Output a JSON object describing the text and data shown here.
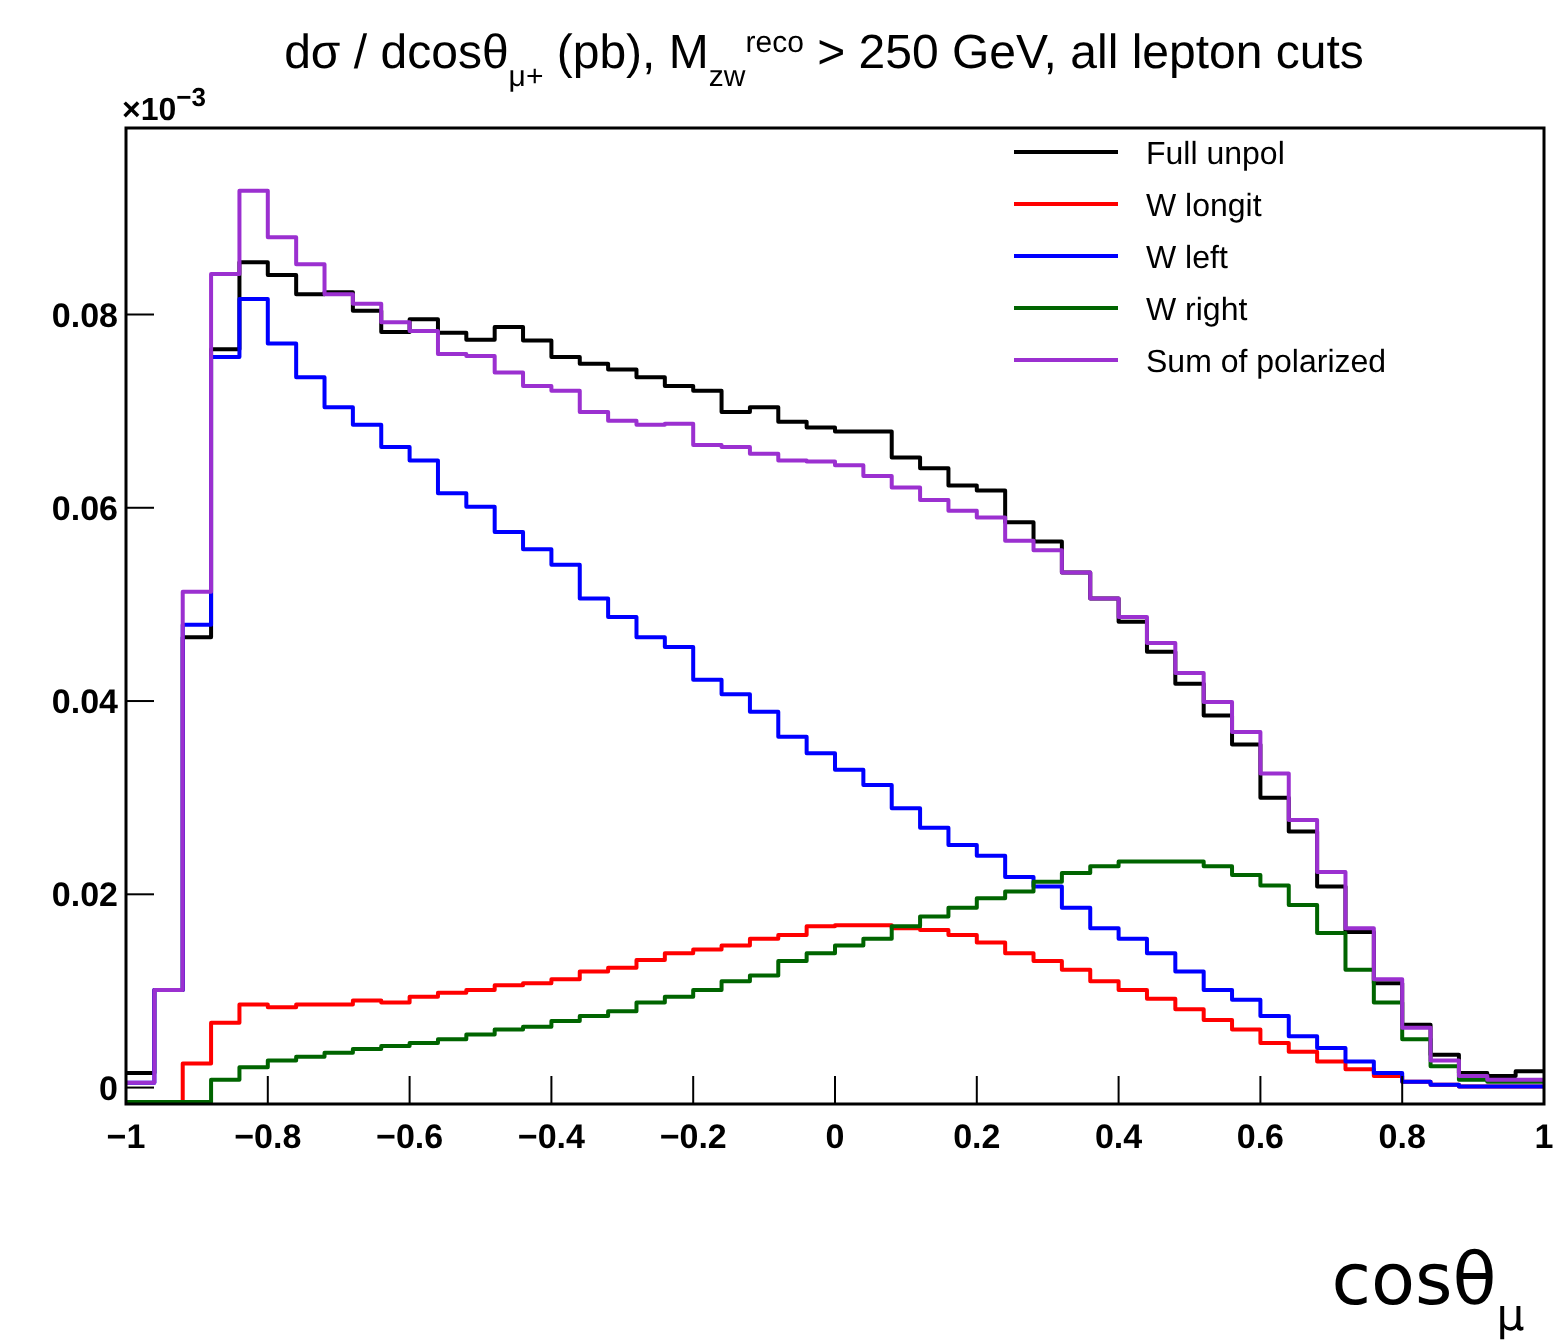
{
  "chart_data": {
    "type": "histogram",
    "title": "dσ / dcosθ$_{μ+}$ (pb), M$_{zw}$$^{reco}$ > 250 GeV, all lepton cuts",
    "xlabel": "cosθ$_{μ}$",
    "annotations": [
      "×10$^{−3}$"
    ],
    "bins": [
      -1,
      -0.96,
      -0.92,
      -0.88,
      -0.84,
      -0.8,
      -0.76,
      -0.72,
      -0.68,
      -0.64,
      -0.6,
      -0.56,
      -0.52,
      -0.48,
      -0.44,
      -0.4,
      -0.36,
      -0.32,
      -0.28,
      -0.24,
      -0.2,
      -0.16,
      -0.12,
      -0.08,
      -0.04,
      0,
      0.04,
      0.08,
      0.12,
      0.16,
      0.2,
      0.24,
      0.28,
      0.32,
      0.36,
      0.4,
      0.44,
      0.48,
      0.52,
      0.56,
      0.6,
      0.64,
      0.68,
      0.72,
      0.76,
      0.8,
      0.84,
      0.88,
      0.92,
      0.96,
      1
    ],
    "series": [
      {
        "name": "Full unpol",
        "color": "#000000",
        "values": [
          0.0015,
          0.0101,
          0.0466,
          0.0764,
          0.0854,
          0.0841,
          0.0821,
          0.0823,
          0.0804,
          0.0782,
          0.0795,
          0.0781,
          0.0774,
          0.0787,
          0.0773,
          0.0756,
          0.0749,
          0.0743,
          0.0735,
          0.0726,
          0.0721,
          0.0699,
          0.0704,
          0.0689,
          0.0683,
          0.0679,
          0.0679,
          0.0652,
          0.0641,
          0.0623,
          0.0618,
          0.0585,
          0.0565,
          0.0533,
          0.0506,
          0.0482,
          0.0451,
          0.0418,
          0.0385,
          0.0355,
          0.03,
          0.0265,
          0.0208,
          0.0161,
          0.0108,
          0.0065,
          0.0034,
          0.0015,
          0.0012,
          0.0017
        ]
      },
      {
        "name": "W longit",
        "color": "#ff0000",
        "values": [
          -0.0015,
          -0.0015,
          0.0025,
          0.0067,
          0.0086,
          0.0083,
          0.0086,
          0.0086,
          0.009,
          0.0088,
          0.0094,
          0.0098,
          0.0101,
          0.0106,
          0.0108,
          0.0112,
          0.012,
          0.0124,
          0.0132,
          0.0139,
          0.0143,
          0.0147,
          0.0154,
          0.0158,
          0.0167,
          0.0168,
          0.0168,
          0.0165,
          0.0163,
          0.0158,
          0.015,
          0.0139,
          0.0131,
          0.0122,
          0.011,
          0.0101,
          0.0092,
          0.0081,
          0.007,
          0.006,
          0.0046,
          0.0037,
          0.0027,
          0.0019,
          0.0012,
          0.0006,
          0.0003,
          0.0001,
          0.0001,
          0.0001
        ]
      },
      {
        "name": "W left",
        "color": "#0000ff",
        "values": [
          0.0005,
          0.0101,
          0.0479,
          0.0756,
          0.0816,
          0.077,
          0.0735,
          0.0704,
          0.0686,
          0.0663,
          0.0649,
          0.0615,
          0.0601,
          0.0575,
          0.0557,
          0.0541,
          0.0506,
          0.0487,
          0.0466,
          0.0456,
          0.0422,
          0.0407,
          0.0389,
          0.0363,
          0.0346,
          0.0329,
          0.0313,
          0.0289,
          0.0269,
          0.0251,
          0.024,
          0.0218,
          0.0208,
          0.0186,
          0.0165,
          0.0154,
          0.0139,
          0.012,
          0.0101,
          0.0091,
          0.0074,
          0.0053,
          0.0041,
          0.0027,
          0.0015,
          0.0006,
          0.0003,
          0.0001,
          0.0001,
          0.0001
        ]
      },
      {
        "name": "W right",
        "color": "#006400",
        "values": [
          -0.0015,
          -0.0015,
          -0.0015,
          0.0008,
          0.0021,
          0.0028,
          0.0032,
          0.0036,
          0.004,
          0.0043,
          0.0046,
          0.005,
          0.0055,
          0.006,
          0.0063,
          0.0069,
          0.0074,
          0.0079,
          0.0088,
          0.0094,
          0.0101,
          0.011,
          0.0116,
          0.0131,
          0.0139,
          0.0147,
          0.0154,
          0.0167,
          0.0177,
          0.0186,
          0.0196,
          0.0203,
          0.0213,
          0.0222,
          0.0229,
          0.0234,
          0.0234,
          0.0234,
          0.0229,
          0.022,
          0.0209,
          0.0189,
          0.016,
          0.0122,
          0.0088,
          0.005,
          0.0022,
          0.0008,
          0.0006,
          0.0006
        ]
      },
      {
        "name": "Sum of polarized",
        "color": "#9b30d0",
        "values": [
          0.0005,
          0.0101,
          0.0513,
          0.0842,
          0.0928,
          0.088,
          0.0852,
          0.0821,
          0.0811,
          0.0792,
          0.0783,
          0.0759,
          0.0757,
          0.074,
          0.0726,
          0.0721,
          0.0699,
          0.069,
          0.0686,
          0.0687,
          0.0665,
          0.0663,
          0.0656,
          0.0649,
          0.0648,
          0.0644,
          0.0633,
          0.0621,
          0.0608,
          0.0597,
          0.059,
          0.0566,
          0.0556,
          0.0533,
          0.0506,
          0.0487,
          0.046,
          0.0429,
          0.0399,
          0.0368,
          0.0325,
          0.0277,
          0.0223,
          0.0165,
          0.0112,
          0.0062,
          0.0028,
          0.0012,
          0.0008,
          0.0008
        ]
      }
    ],
    "xlim": [
      -1,
      1
    ],
    "ylim": [
      -0.0017,
      0.0993
    ],
    "xticks": [
      {
        "value": -1,
        "label": "−1"
      },
      {
        "value": -0.8,
        "label": "−0.8"
      },
      {
        "value": -0.6,
        "label": "−0.6"
      },
      {
        "value": -0.4,
        "label": "−0.4"
      },
      {
        "value": -0.2,
        "label": "−0.2"
      },
      0,
      0.2,
      0.4,
      0.6,
      0.8,
      1
    ],
    "yticks": [
      0,
      0.02,
      0.04,
      0.06,
      0.08
    ],
    "legend": "top right",
    "grid": false
  }
}
